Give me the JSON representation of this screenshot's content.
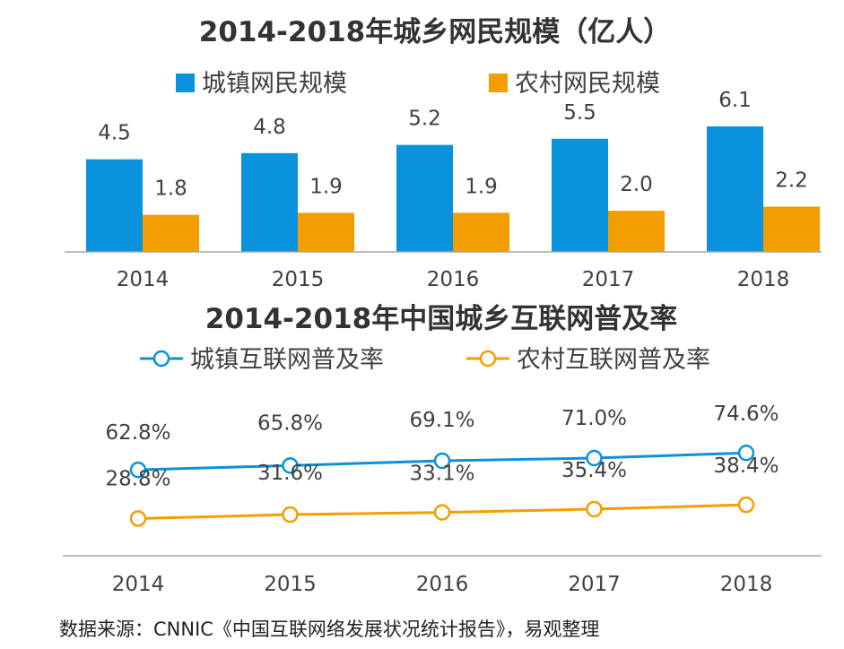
{
  "colors": {
    "urban": "#0a92dd",
    "rural": "#f49d00",
    "axis": "#a6a6a6",
    "text": "#404040",
    "title": "#333333"
  },
  "chart_data": [
    {
      "type": "bar",
      "title": "2014-2018年城乡网民规模（亿人）",
      "categories": [
        "2014",
        "2015",
        "2016",
        "2017",
        "2018"
      ],
      "series": [
        {
          "name": "城镇网民规模",
          "values": [
            4.5,
            4.8,
            5.2,
            5.5,
            6.1
          ]
        },
        {
          "name": "农村网民规模",
          "values": [
            1.8,
            1.9,
            1.9,
            2.0,
            2.2
          ]
        }
      ],
      "data_labels": {
        "urban": [
          "4.5",
          "4.8",
          "5.2",
          "5.5",
          "6.1"
        ],
        "rural": [
          "1.8",
          "1.9",
          "1.9",
          "2.0",
          "2.2"
        ]
      },
      "ylim": [
        0,
        6.1
      ],
      "legend": "top",
      "grid": false
    },
    {
      "type": "line",
      "title": "2014-2018年中国城乡互联网普及率",
      "categories": [
        "2014",
        "2015",
        "2016",
        "2017",
        "2018"
      ],
      "series": [
        {
          "name": "城镇互联网普及率",
          "values": [
            62.8,
            65.8,
            69.1,
            71.0,
            74.6
          ]
        },
        {
          "name": "农村互联网普及率",
          "values": [
            28.8,
            31.6,
            33.1,
            35.4,
            38.4
          ]
        }
      ],
      "data_labels": {
        "urban": [
          "62.8%",
          "65.8%",
          "69.1%",
          "71.0%",
          "74.6%"
        ],
        "rural": [
          "28.8%",
          "31.6%",
          "33.1%",
          "35.4%",
          "38.4%"
        ]
      },
      "legend": "top",
      "grid": false
    }
  ],
  "source_text": "数据来源：CNNIC《中国互联网络发展状况统计报告》，易观整理"
}
